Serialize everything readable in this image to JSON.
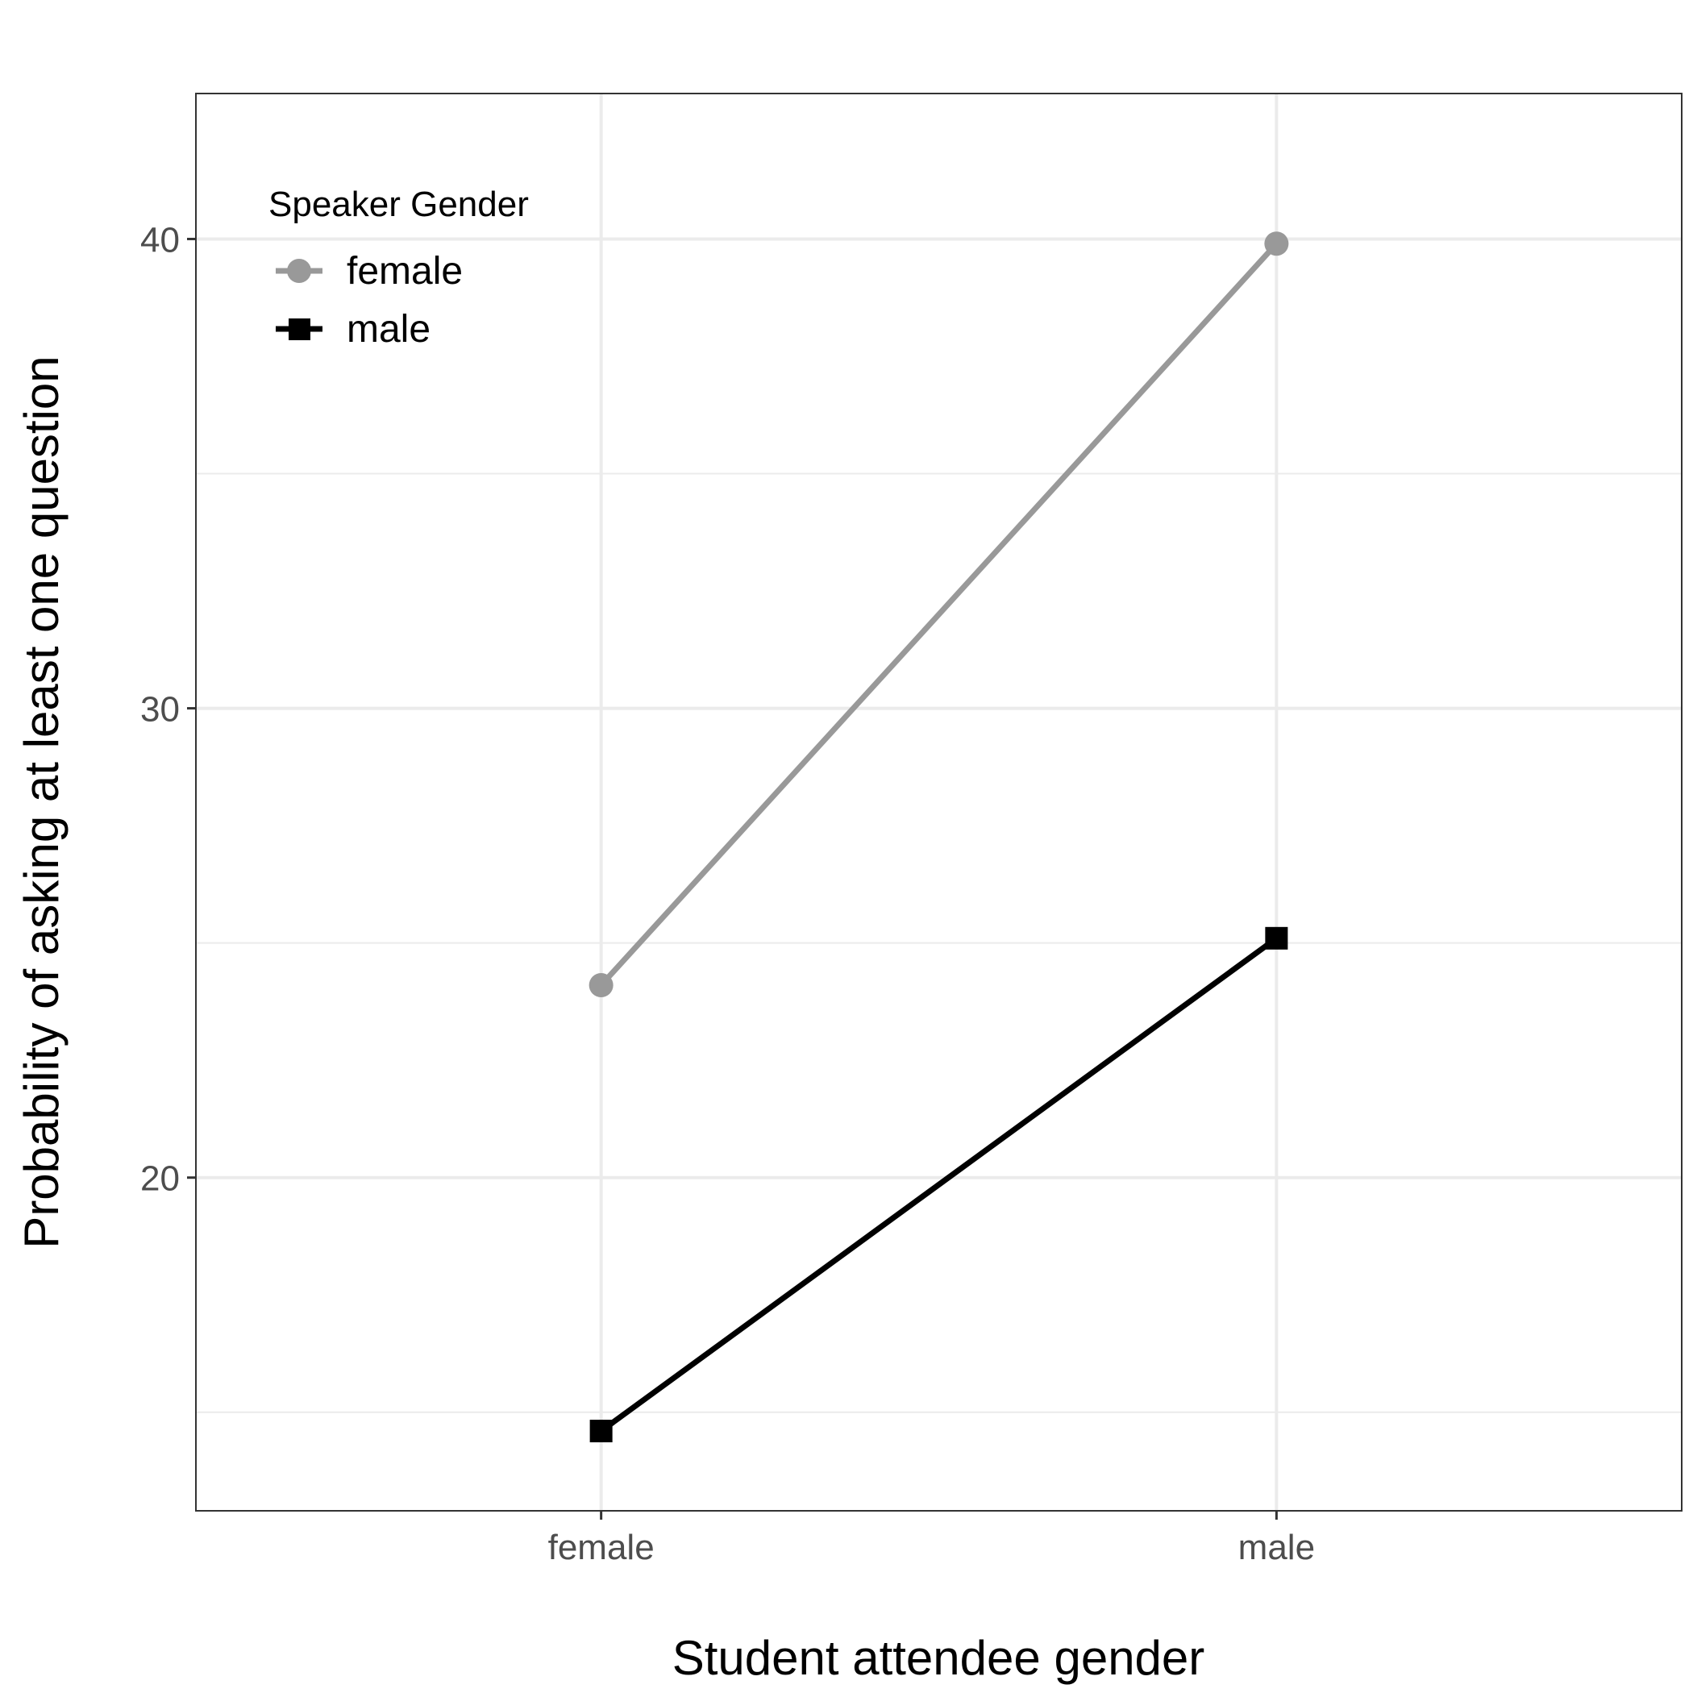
{
  "chart_data": {
    "type": "line",
    "xlabel": "Student attendee gender",
    "ylabel": "Probability of asking at least one question",
    "categories": [
      "female",
      "male"
    ],
    "ylim": [
      12.9,
      43.1
    ],
    "yticks": [
      20,
      30,
      40
    ],
    "grid": true,
    "legend": {
      "title": "Speaker Gender",
      "position": "top-left"
    },
    "series": [
      {
        "name": "female",
        "values": [
          24.1,
          39.9
        ],
        "color": "#999999",
        "marker": "circle"
      },
      {
        "name": "male",
        "values": [
          14.6,
          25.1
        ],
        "color": "#000000",
        "marker": "square"
      }
    ]
  }
}
